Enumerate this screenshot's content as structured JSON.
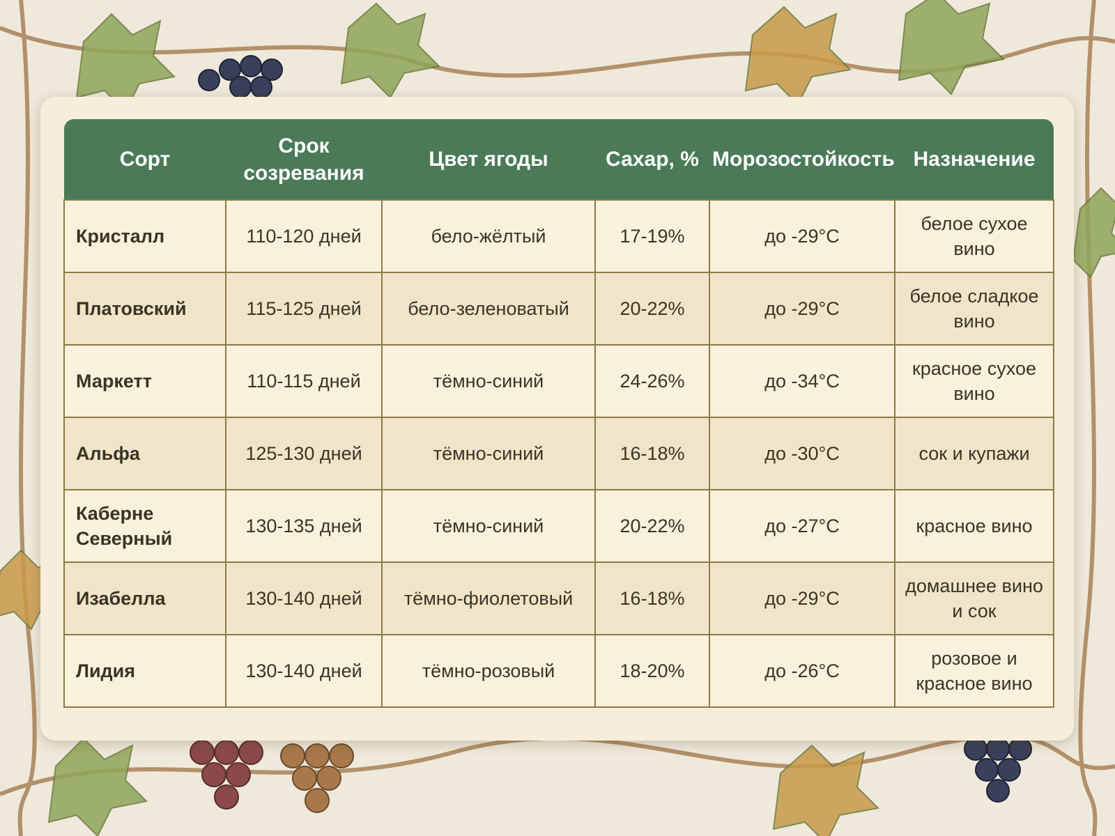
{
  "table": {
    "headers": [
      "Сорт",
      "Срок созревания",
      "Цвет ягоды",
      "Сахар, %",
      "Морозостойкость",
      "Назначение"
    ],
    "rows": [
      [
        "Кристалл",
        "110-120 дней",
        "бело-жёлтый",
        "17-19%",
        "до -29°C",
        "белое сухое вино"
      ],
      [
        "Платовский",
        "115-125 дней",
        "бело-зеленоватый",
        "20-22%",
        "до -29°C",
        "белое сладкое вино"
      ],
      [
        "Маркетт",
        "110-115 дней",
        "тёмно-синий",
        "24-26%",
        "до -34°C",
        "красное сухое вино"
      ],
      [
        "Альфа",
        "125-130 дней",
        "тёмно-синий",
        "16-18%",
        "до -30°C",
        "сок и купажи"
      ],
      [
        "Каберне Северный",
        "130-135 дней",
        "тёмно-синий",
        "20-22%",
        "до -27°C",
        "красное вино"
      ],
      [
        "Изабелла",
        "130-140 дней",
        "тёмно-фиолетовый",
        "16-18%",
        "до -29°C",
        "домашнее вино и сок"
      ],
      [
        "Лидия",
        "130-140 дней",
        "тёмно-розовый",
        "18-20%",
        "до -26°C",
        "розовое и красное вино"
      ]
    ]
  }
}
